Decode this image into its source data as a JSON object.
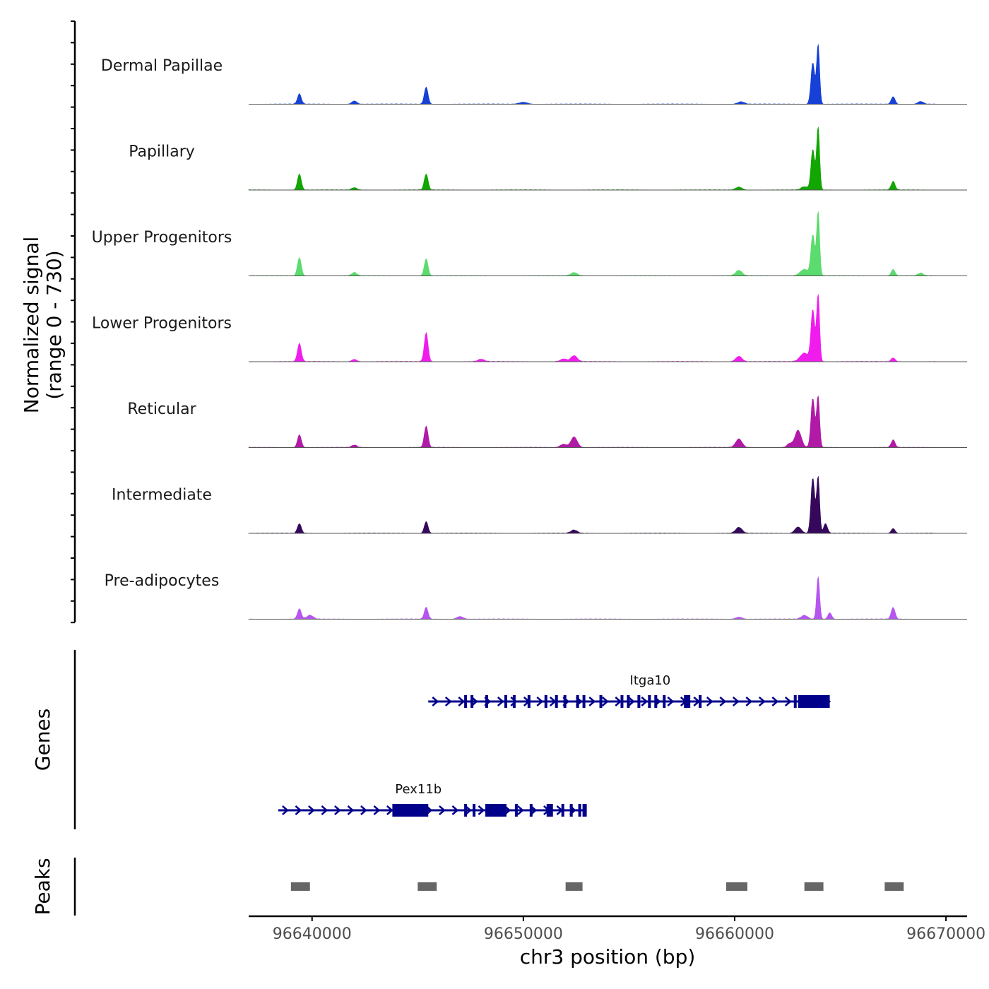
{
  "chart_data": {
    "type": "area",
    "title": "",
    "chromosome": "chr3",
    "xlabel": "chr3 position (bp)",
    "xlim": [
      96637000,
      96671000
    ],
    "x_ticks": [
      96640000,
      96650000,
      96660000,
      96670000
    ],
    "x_tick_labels": [
      "96640000",
      "96650000",
      "96660000",
      "96670000"
    ],
    "signal_ylabel": "Normalized signal",
    "signal_range_label": "(range 0 - 730)",
    "signal_range": [
      0,
      730
    ],
    "signal_start": 96637000,
    "signal_end": 96669500,
    "tracks": [
      {
        "name": "Dermal Papillae",
        "color": "#1640d6",
        "peaks": [
          [
            96639400,
            95,
            90
          ],
          [
            96642000,
            30,
            120
          ],
          [
            96645400,
            160,
            90
          ],
          [
            96650000,
            18,
            200
          ],
          [
            96660300,
            22,
            150
          ],
          [
            96663700,
            390,
            90
          ],
          [
            96663950,
            560,
            70
          ],
          [
            96667500,
            70,
            90
          ],
          [
            96668800,
            25,
            130
          ]
        ]
      },
      {
        "name": "Papillary",
        "color": "#11a600",
        "peaks": [
          [
            96639400,
            150,
            90
          ],
          [
            96642000,
            22,
            120
          ],
          [
            96645400,
            150,
            90
          ],
          [
            96660200,
            28,
            150
          ],
          [
            96663300,
            30,
            150
          ],
          [
            96663700,
            380,
            90
          ],
          [
            96663950,
            590,
            70
          ],
          [
            96667500,
            80,
            90
          ]
        ]
      },
      {
        "name": "Upper Progenitors",
        "color": "#5cdb6e",
        "peaks": [
          [
            96639400,
            170,
            90
          ],
          [
            96642000,
            30,
            120
          ],
          [
            96645400,
            160,
            90
          ],
          [
            96652400,
            30,
            150
          ],
          [
            96660200,
            50,
            150
          ],
          [
            96663300,
            60,
            200
          ],
          [
            96663700,
            380,
            90
          ],
          [
            96663950,
            600,
            70
          ],
          [
            96667500,
            60,
            90
          ],
          [
            96668800,
            25,
            120
          ]
        ]
      },
      {
        "name": "Lower Progenitors",
        "color": "#f01cee",
        "peaks": [
          [
            96639400,
            170,
            90
          ],
          [
            96642000,
            22,
            120
          ],
          [
            96645400,
            270,
            90
          ],
          [
            96648000,
            22,
            150
          ],
          [
            96652400,
            55,
            150
          ],
          [
            96651900,
            25,
            150
          ],
          [
            96660200,
            50,
            150
          ],
          [
            96663300,
            80,
            200
          ],
          [
            96663700,
            480,
            90
          ],
          [
            96663950,
            630,
            70
          ],
          [
            96667500,
            35,
            90
          ]
        ]
      },
      {
        "name": "Reticular",
        "color": "#b01aa6",
        "peaks": [
          [
            96639400,
            120,
            90
          ],
          [
            96642000,
            22,
            120
          ],
          [
            96645400,
            200,
            90
          ],
          [
            96652400,
            100,
            150
          ],
          [
            96651900,
            30,
            150
          ],
          [
            96660200,
            80,
            150
          ],
          [
            96662600,
            35,
            120
          ],
          [
            96663000,
            160,
            150
          ],
          [
            96663700,
            460,
            90
          ],
          [
            96663950,
            480,
            70
          ],
          [
            96667500,
            70,
            90
          ]
        ]
      },
      {
        "name": "Intermediate",
        "color": "#35085c",
        "peaks": [
          [
            96639400,
            90,
            90
          ],
          [
            96645400,
            110,
            90
          ],
          [
            96652400,
            30,
            150
          ],
          [
            96660200,
            55,
            150
          ],
          [
            96663000,
            60,
            150
          ],
          [
            96663700,
            520,
            90
          ],
          [
            96663950,
            530,
            70
          ],
          [
            96664300,
            90,
            90
          ],
          [
            96667500,
            45,
            90
          ]
        ]
      },
      {
        "name": "Pre-adipocytes",
        "color": "#b655ef",
        "peaks": [
          [
            96639400,
            95,
            90
          ],
          [
            96639900,
            35,
            150
          ],
          [
            96645400,
            110,
            90
          ],
          [
            96647000,
            25,
            150
          ],
          [
            96660200,
            20,
            150
          ],
          [
            96663300,
            35,
            150
          ],
          [
            96663950,
            400,
            70
          ],
          [
            96664500,
            60,
            90
          ],
          [
            96667500,
            110,
            90
          ]
        ]
      }
    ],
    "genes_label": "Genes",
    "genes": [
      {
        "name": "Itga10",
        "strand": "+",
        "start": 96645500,
        "end": 96664500,
        "exons": [
          [
            96647200,
            96647300
          ],
          [
            96647500,
            96647600
          ],
          [
            96648200,
            96648300
          ],
          [
            96649100,
            96649200
          ],
          [
            96649500,
            96649600
          ],
          [
            96650200,
            96650300
          ],
          [
            96651000,
            96651100
          ],
          [
            96651500,
            96651600
          ],
          [
            96651900,
            96652000
          ],
          [
            96652500,
            96652600
          ],
          [
            96652800,
            96652900
          ],
          [
            96653600,
            96653700
          ],
          [
            96654600,
            96654700
          ],
          [
            96654900,
            96655000
          ],
          [
            96655400,
            96655500
          ],
          [
            96655900,
            96656000
          ],
          [
            96656200,
            96656300
          ],
          [
            96656600,
            96656700
          ],
          [
            96657600,
            96657900
          ],
          [
            96658300,
            96658400
          ],
          [
            96662800,
            96662900
          ],
          [
            96663000,
            96664500
          ]
        ]
      },
      {
        "name": "Pex11b",
        "strand": "+",
        "start": 96638400,
        "end": 96653000,
        "exons": [
          [
            96643800,
            96645500
          ],
          [
            96647200,
            96647300
          ],
          [
            96647600,
            96647700
          ],
          [
            96648200,
            96649200
          ],
          [
            96649600,
            96649700
          ],
          [
            96650300,
            96650400
          ],
          [
            96651100,
            96651400
          ],
          [
            96651800,
            96651900
          ],
          [
            96652200,
            96652300
          ],
          [
            96652600,
            96652700
          ],
          [
            96652800,
            96653000
          ]
        ]
      }
    ],
    "peaks_label": "Peaks",
    "peak_regions": [
      [
        96639000,
        96639900
      ],
      [
        96645000,
        96645900
      ],
      [
        96652000,
        96652800
      ],
      [
        96659600,
        96660600
      ],
      [
        96663300,
        96664200
      ],
      [
        96667100,
        96668000
      ]
    ]
  }
}
